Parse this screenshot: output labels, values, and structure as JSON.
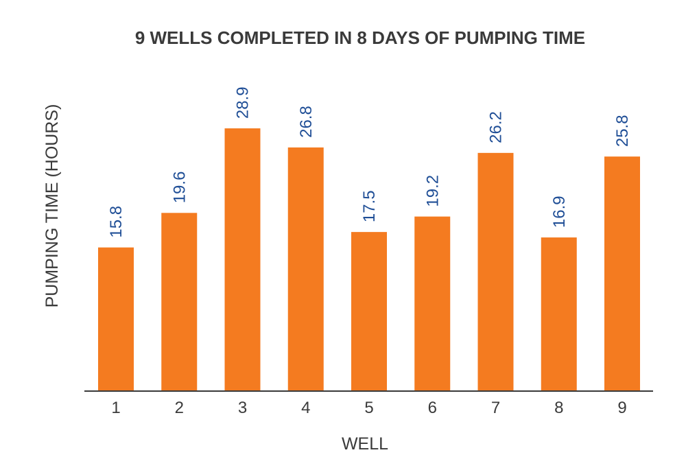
{
  "chart_data": {
    "type": "bar",
    "title": "9 WELLS COMPLETED IN 8 DAYS OF PUMPING TIME",
    "xlabel": "WELL",
    "ylabel": "PUMPING TIME (HOURS)",
    "categories": [
      "1",
      "2",
      "3",
      "4",
      "5",
      "6",
      "7",
      "8",
      "9"
    ],
    "values": [
      15.8,
      19.6,
      28.9,
      26.8,
      17.5,
      19.2,
      26.2,
      16.9,
      25.8
    ],
    "value_labels": [
      "15.8",
      "19.6",
      "28.9",
      "26.8",
      "17.5",
      "19.2",
      "26.2",
      "16.9",
      "25.8"
    ],
    "ylim": [
      0,
      35
    ],
    "grid": false,
    "colors": {
      "bar": "#f47b20",
      "data_label": "#1f4e96",
      "axis": "#3a3a3a"
    }
  }
}
